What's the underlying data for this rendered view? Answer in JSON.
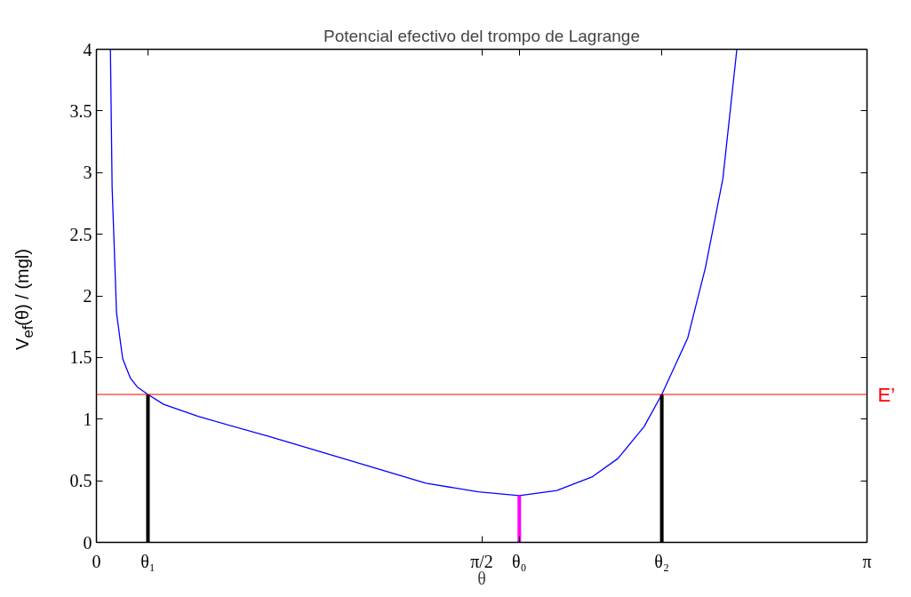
{
  "chart_data": {
    "type": "line",
    "title": "Potencial efectivo del trompo de Lagrange",
    "xlabel": "θ",
    "ylabel": "V$_{ef}$(θ) / (mgl)",
    "xlim": [
      0,
      3.1416
    ],
    "ylim": [
      0,
      4
    ],
    "xticks": [
      0,
      {
        "value": 0.21,
        "label": "θ₁"
      },
      {
        "value": 1.5708,
        "label": "π/2"
      },
      {
        "value": 1.724,
        "label": "θ₀"
      },
      {
        "value": 2.305,
        "label": "θ₂"
      },
      {
        "value": 3.1416,
        "label": "π"
      }
    ],
    "yticks": [
      0,
      0.5,
      1,
      1.5,
      2,
      2.5,
      3,
      3.5,
      4
    ],
    "grid": false,
    "series": [
      {
        "color": "#0000ff",
        "x": [
          0.057,
          0.064,
          0.082,
          0.107,
          0.139,
          0.167,
          0.21,
          0.274,
          0.417,
          0.702,
          1.058,
          1.343,
          1.557,
          1.724,
          1.877,
          2.02,
          2.126,
          2.233,
          2.305,
          2.411,
          2.483,
          2.554,
          2.611
        ],
        "values": [
          4.0,
          2.88,
          1.86,
          1.49,
          1.33,
          1.26,
          1.2,
          1.12,
          1.02,
          0.86,
          0.65,
          0.48,
          0.41,
          0.38,
          0.42,
          0.53,
          0.68,
          0.94,
          1.2,
          1.66,
          2.23,
          2.95,
          4.0
        ]
      },
      {
        "color": "#000000",
        "x": [
          0.21,
          0.21
        ],
        "values": [
          0,
          1.2
        ]
      },
      {
        "color": "#ff00ff",
        "x": [
          1.724,
          1.724
        ],
        "values": [
          0,
          0.38
        ]
      },
      {
        "color": "#000000",
        "x": [
          2.305,
          2.305
        ],
        "values": [
          0,
          1.2
        ]
      }
    ],
    "ref_lines": [
      {
        "axis": "y",
        "value": 1.2,
        "label": "E’",
        "color": "#ff0000"
      }
    ]
  }
}
